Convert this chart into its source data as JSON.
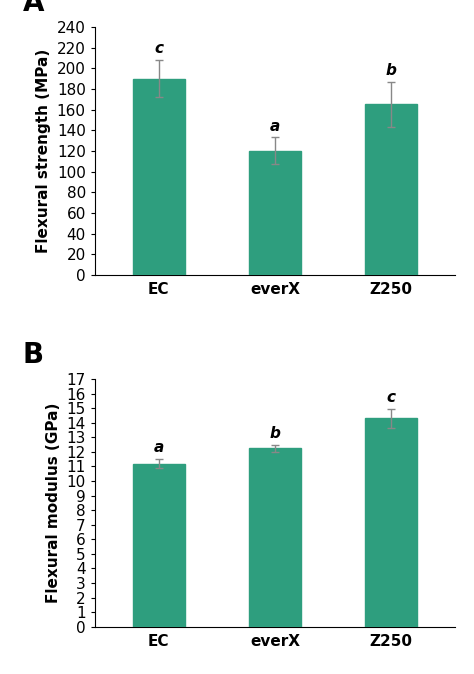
{
  "panel_A": {
    "label": "A",
    "categories": [
      "EC",
      "everX",
      "Z250"
    ],
    "values": [
      190,
      120,
      165
    ],
    "errors": [
      18,
      13,
      22
    ],
    "significance": [
      "c",
      "a",
      "b"
    ],
    "ylabel": "Flexural strength (MPa)",
    "ylim": [
      0,
      240
    ],
    "yticks": [
      0,
      20,
      40,
      60,
      80,
      100,
      120,
      140,
      160,
      180,
      200,
      220,
      240
    ]
  },
  "panel_B": {
    "label": "B",
    "categories": [
      "EC",
      "everX",
      "Z250"
    ],
    "values": [
      11.2,
      12.25,
      14.3
    ],
    "errors": [
      0.3,
      0.25,
      0.65
    ],
    "significance": [
      "a",
      "b",
      "c"
    ],
    "ylabel": "Flexural modulus (GPa)",
    "ylim": [
      0,
      17
    ],
    "yticks": [
      0,
      1,
      2,
      3,
      4,
      5,
      6,
      7,
      8,
      9,
      10,
      11,
      12,
      13,
      14,
      15,
      16,
      17
    ]
  },
  "bar_color": "#2e9e7e",
  "bar_width": 0.45,
  "error_color": "#888888",
  "text_color": "black",
  "background_color": "white",
  "ylabel_fontsize": 11,
  "tick_fontsize": 11,
  "sig_fontsize": 11,
  "panel_label_fontsize": 20
}
